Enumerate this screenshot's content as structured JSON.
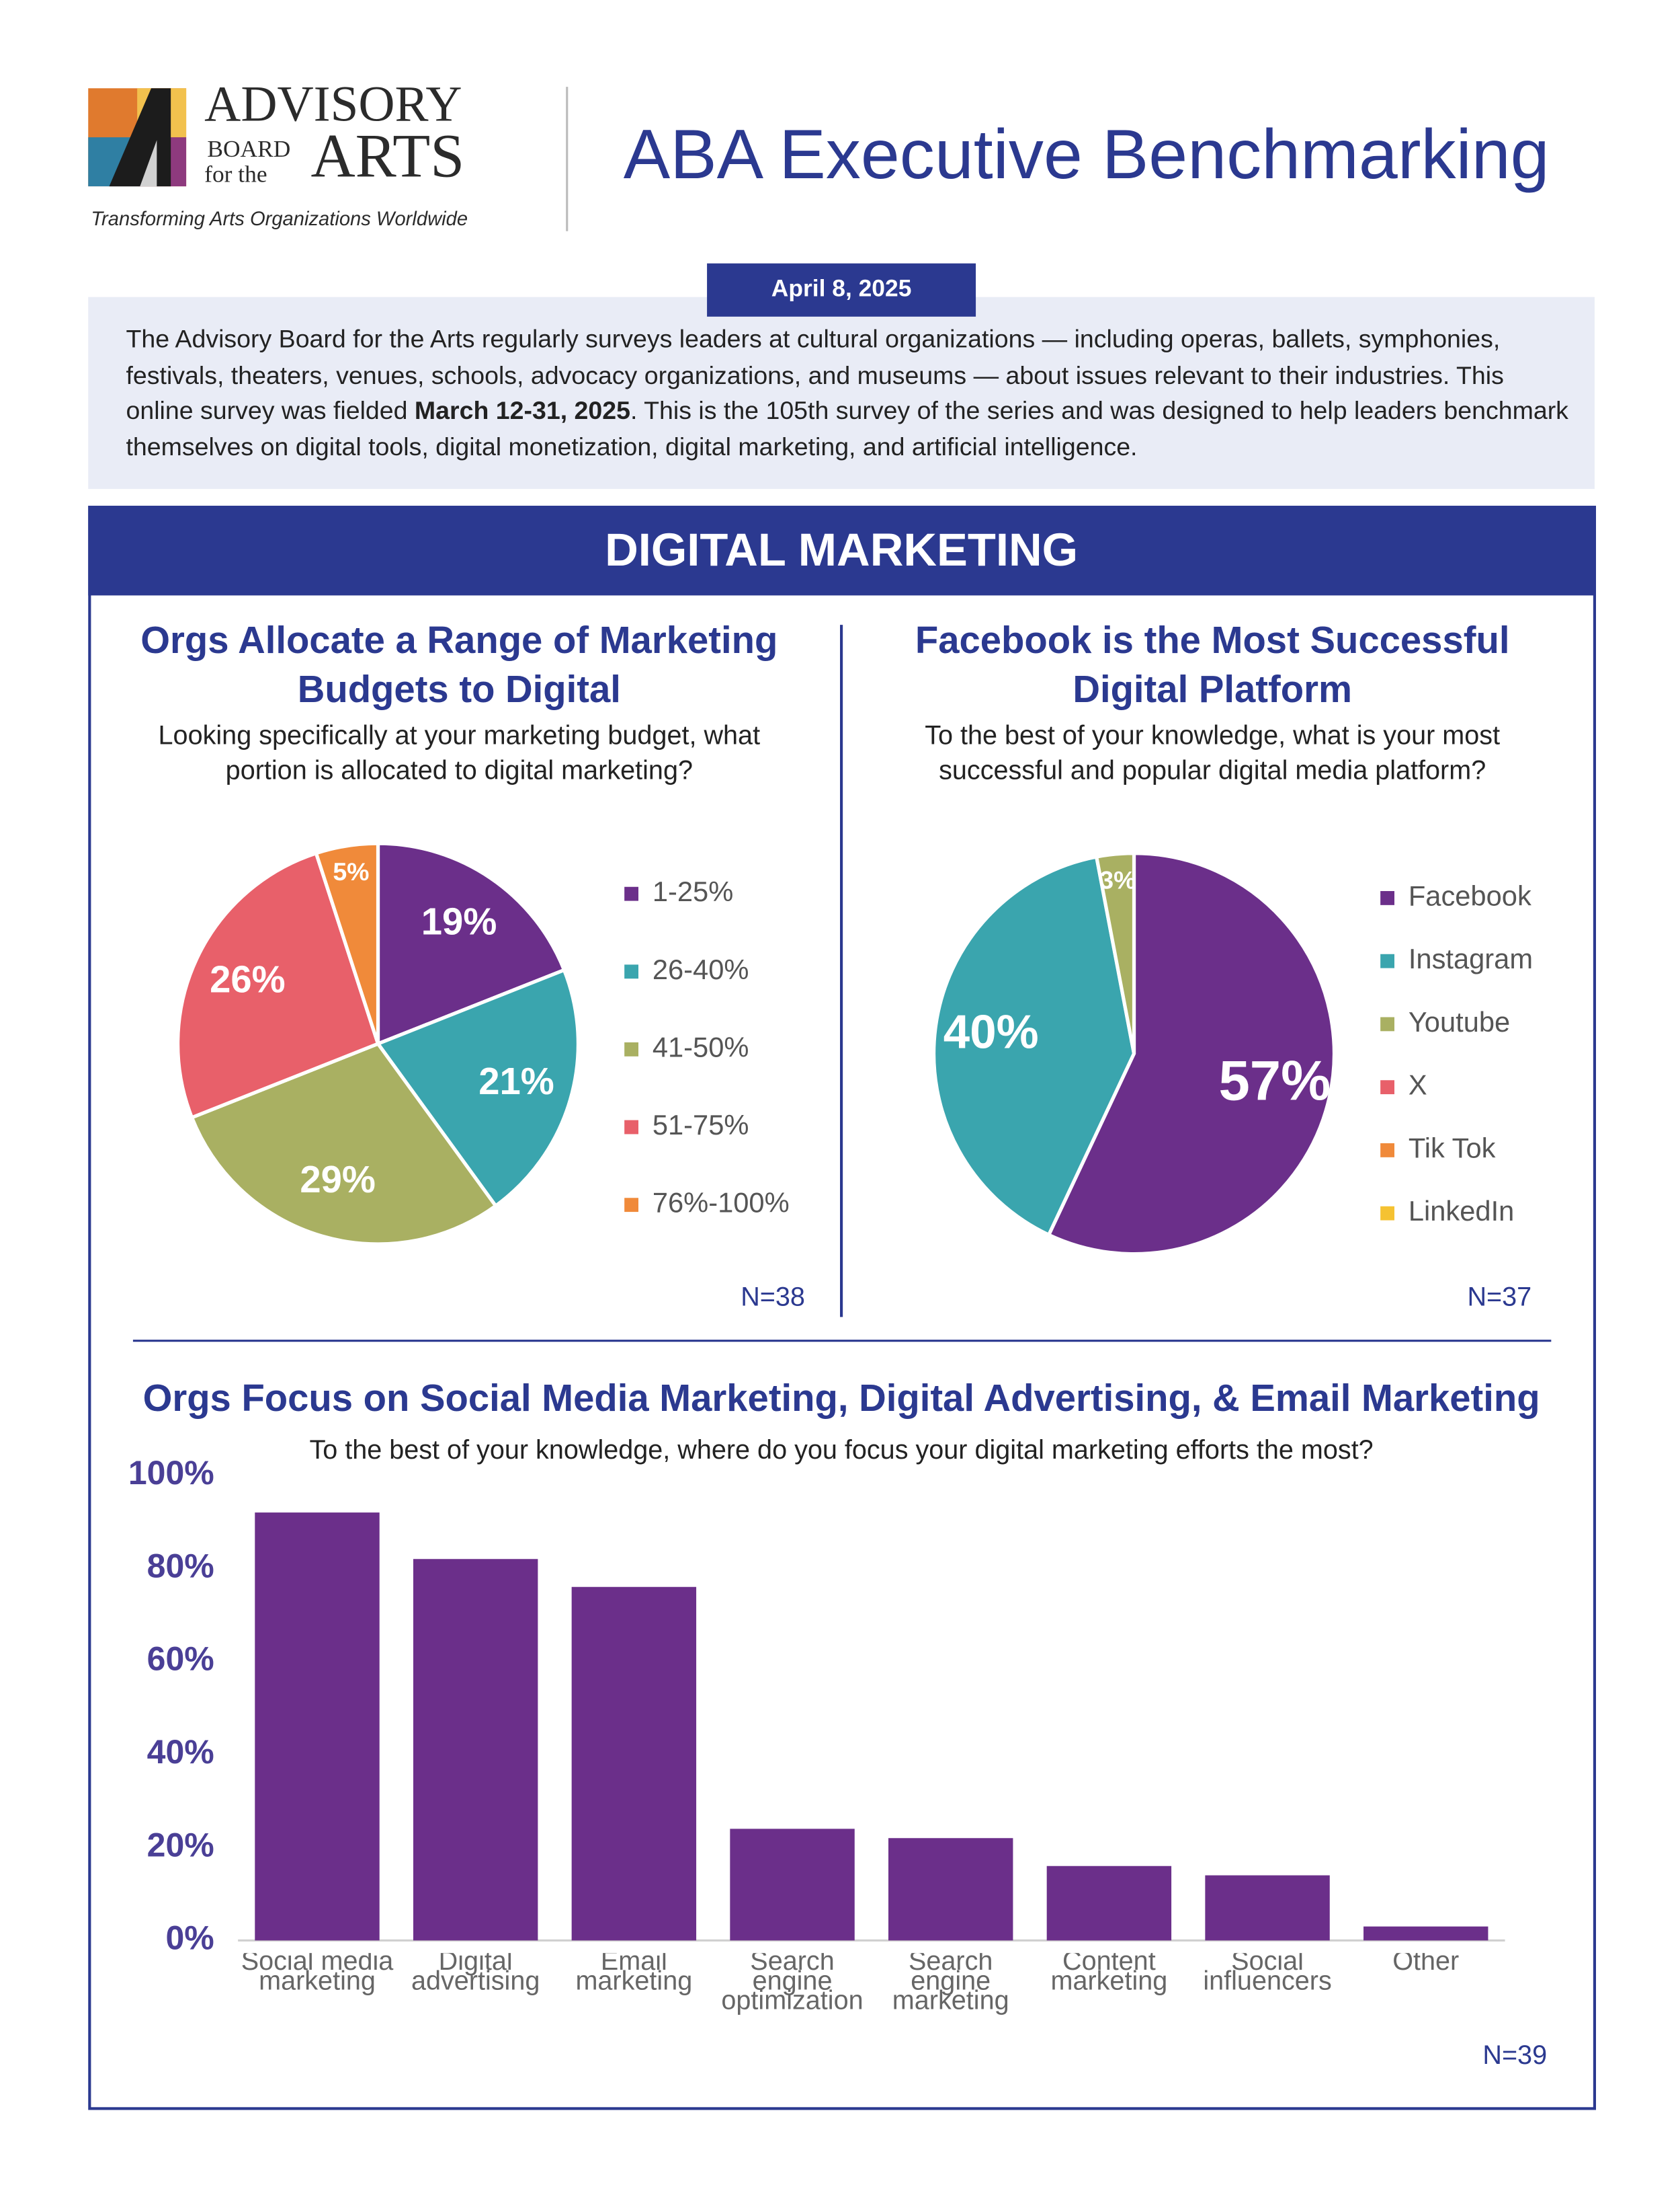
{
  "header": {
    "logo": {
      "line1": "ADVISORY",
      "line2": "BOARD",
      "line3": "for the",
      "line4": "ARTS",
      "tagline": "Transforming Arts Organizations Worldwide"
    },
    "title": "ABA Executive Benchmarking",
    "date": "April 8, 2025"
  },
  "intro": [
    "The Advisory Board for the Arts regularly surveys leaders at cultural organizations — including operas, ballets, symphonies, festivals, theaters, venues, schools, advocacy organizations, and museums — about issues relevant to their industries. This online survey was fielded ",
    "March 12-31, 2025",
    ". This is the 105th survey of the series and was designed to help leaders benchmark themselves on digital tools, digital monetization, digital marketing, and artificial intelligence."
  ],
  "section_title": "DIGITAL MARKETING",
  "chart_data": [
    {
      "type": "pie",
      "title": "Orgs Allocate a Range of Marketing Budgets to Digital",
      "subtitle": "Looking specifically at your marketing budget, what portion is allocated to digital marketing?",
      "categories": [
        "1-25%",
        "26-40%",
        "41-50%",
        "51-75%",
        "76%-100%"
      ],
      "values": [
        19,
        21,
        29,
        26,
        5
      ],
      "value_labels": [
        "19%",
        "21%",
        "29%",
        "26%",
        "5%"
      ],
      "colors": [
        "#6b2f8a",
        "#3aa5ae",
        "#a9b062",
        "#e8606a",
        "#f08a3a"
      ],
      "note": "N=38"
    },
    {
      "type": "pie",
      "title": "Facebook is the Most Successful Digital Platform",
      "subtitle": "To the best of your knowledge, what is your most successful and popular digital media platform?",
      "categories": [
        "Facebook",
        "Instagram",
        "Youtube",
        "X",
        "Tik Tok",
        "LinkedIn"
      ],
      "values": [
        57,
        40,
        3,
        0,
        0,
        0
      ],
      "value_labels": [
        "57%",
        "40%",
        "3%",
        null,
        null,
        null
      ],
      "colors": [
        "#6b2f8a",
        "#3aa5ae",
        "#a9b062",
        "#e8606a",
        "#f08a3a",
        "#f5c232"
      ],
      "note": "N=37"
    },
    {
      "type": "bar",
      "title": "Orgs Focus on Social Media Marketing, Digital Advertising, & Email Marketing",
      "subtitle": "To the best of your knowledge, where do you focus your digital marketing efforts the most?",
      "categories": [
        "Social media marketing",
        "Digital advertising",
        "Email marketing",
        "Search engine optimization",
        "Search engine marketing",
        "Content marketing",
        "Social influencers",
        "Other"
      ],
      "values": [
        92,
        82,
        76,
        24,
        22,
        16,
        14,
        3
      ],
      "color": "#6b2f8a",
      "ylim": [
        0,
        100
      ],
      "yticks": [
        {
          "value": 0,
          "label": "0%"
        },
        {
          "value": 20,
          "label": "20%"
        },
        {
          "value": 40,
          "label": "40%"
        },
        {
          "value": 60,
          "label": "60%"
        },
        {
          "value": 80,
          "label": "80%"
        },
        {
          "value": 100,
          "label": "100%"
        }
      ],
      "note": "N=39"
    }
  ]
}
